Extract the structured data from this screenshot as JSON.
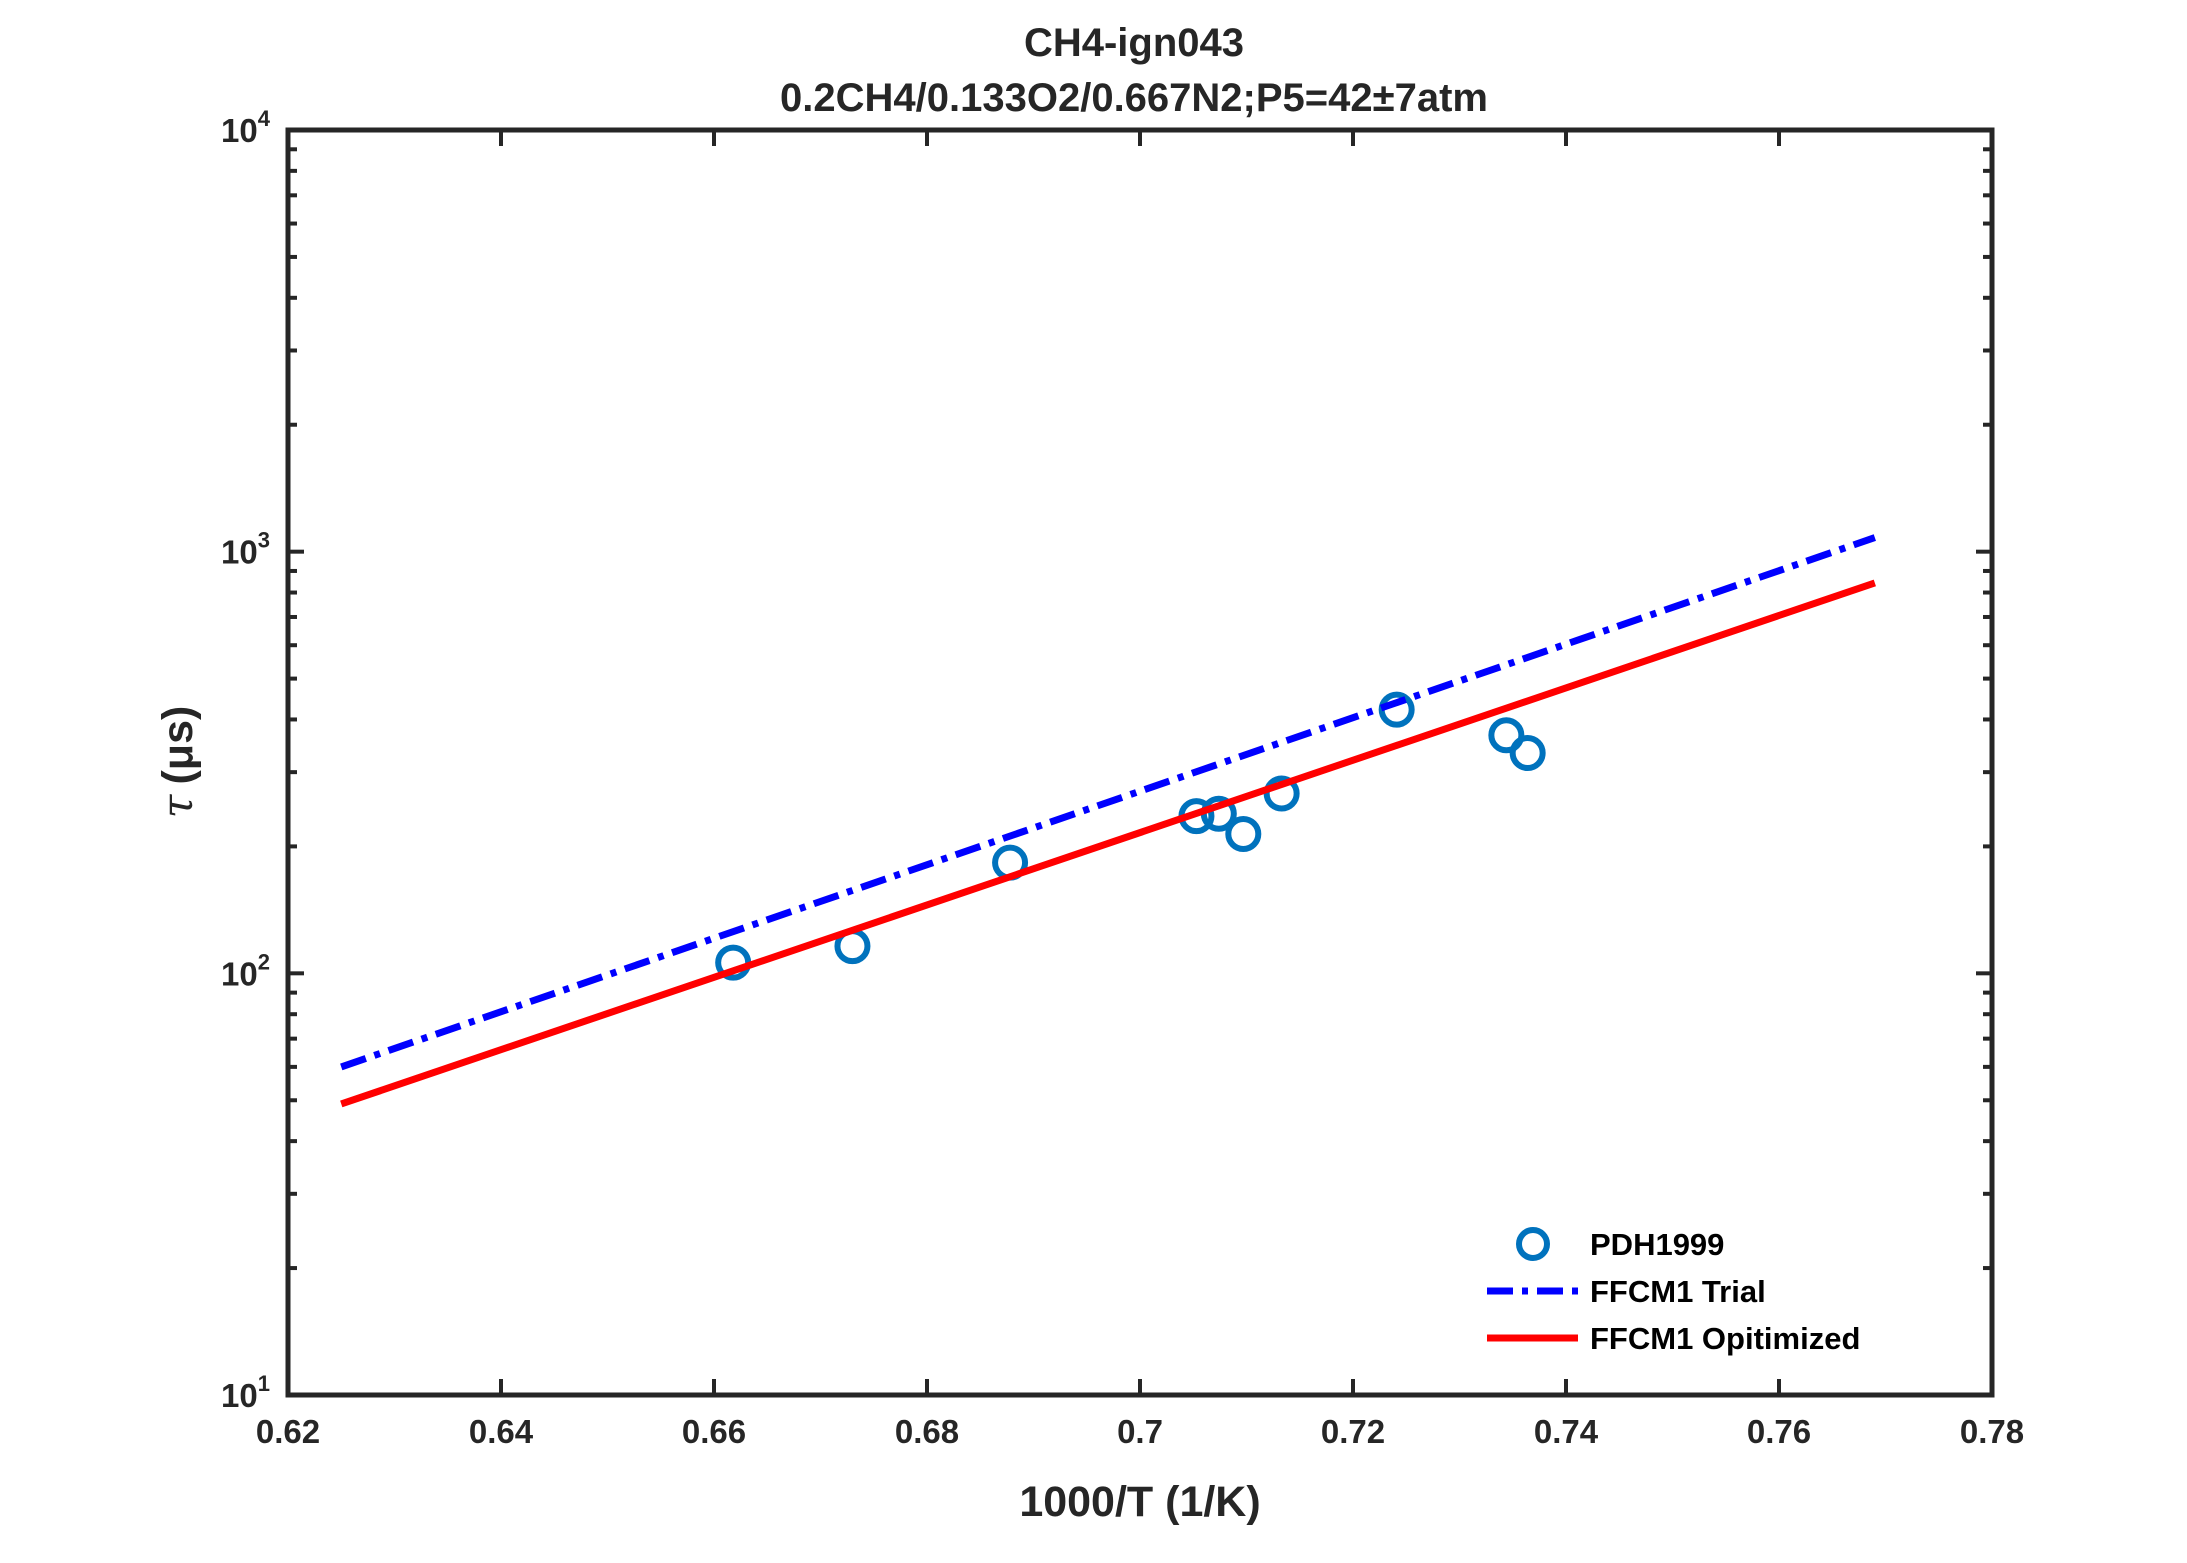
{
  "chart_data": {
    "type": "scatter",
    "title": "CH4-ign043",
    "subtitle": "0.2CH4/0.133O2/0.667N2;P5=42±7atm",
    "xlabel": "1000/T (1/K)",
    "ylabel_symbol": "τ",
    "ylabel_unit": "(μs)",
    "xlim": [
      0.62,
      0.78
    ],
    "ylim": [
      10,
      10000
    ],
    "yscale": "log",
    "grid": false,
    "legend_position": "bottom-right",
    "x_ticks": [
      "0.62",
      "0.64",
      "0.66",
      "0.68",
      "0.7",
      "0.72",
      "0.74",
      "0.76",
      "0.78"
    ],
    "y_ticks": [
      {
        "base": "10",
        "exp": "1"
      },
      {
        "base": "10",
        "exp": "2"
      },
      {
        "base": "10",
        "exp": "3"
      },
      {
        "base": "10",
        "exp": "4"
      }
    ],
    "series": [
      {
        "name": "PDH1999",
        "style": "markers",
        "color": "#0072BD",
        "x": [
          0.6618,
          0.673,
          0.6878,
          0.7053,
          0.7074,
          0.7097,
          0.7133,
          0.7241,
          0.7344,
          0.7364
        ],
        "y": [
          106,
          116,
          183,
          236,
          239,
          214,
          267,
          422,
          367,
          333
        ]
      },
      {
        "name": "FFCM1 Trial",
        "style": "dash-dot",
        "color": "#0000FF",
        "x": [
          0.625,
          0.769
        ],
        "y": [
          60,
          1080
        ]
      },
      {
        "name": "FFCM1 Opitimized",
        "style": "solid",
        "color": "#FF0000",
        "x": [
          0.625,
          0.769
        ],
        "y": [
          49,
          843
        ]
      }
    ]
  }
}
